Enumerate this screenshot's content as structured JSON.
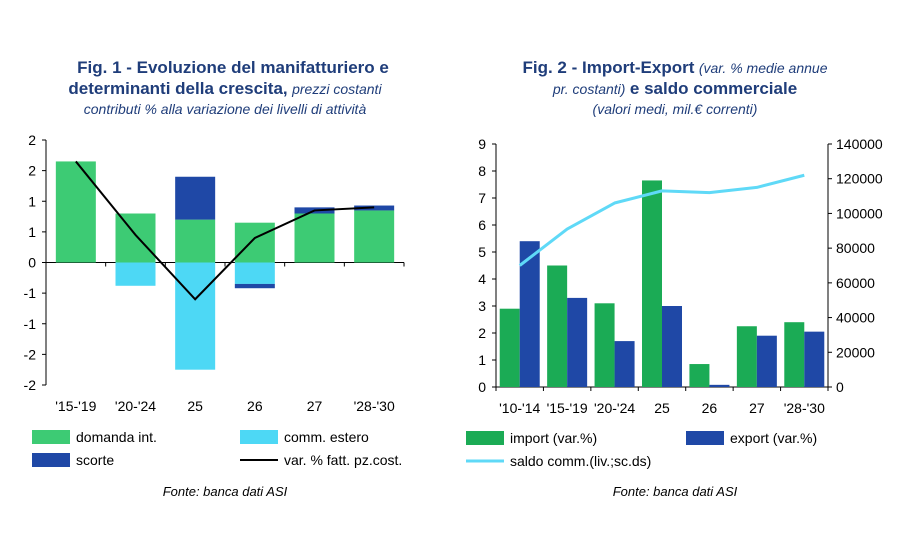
{
  "fig1": {
    "title_bold_1": "Fig. 1 - Evoluzione del manifatturiero e",
    "title_bold_2": "determinanti della crescita,",
    "title_italic_2": "prezzi costanti",
    "title_italic_3": "contributi % alla variazione dei livelli di attività",
    "source": "Fonte: banca dati ASI",
    "chart_data": {
      "type": "bar",
      "stacked": true,
      "categories": [
        "'15-'19",
        "'20-'24",
        "25",
        "26",
        "27",
        "'28-'30"
      ],
      "yticks": [
        "2",
        "2",
        "1",
        "1",
        "0",
        "-1",
        "-1",
        "-2",
        "-2"
      ],
      "ylim": [
        -2.0,
        2.0
      ],
      "grid": false,
      "legend_position": "bottom",
      "series": [
        {
          "name": "domanda int.",
          "kind": "bar",
          "color": "#3dcb74",
          "values": [
            1.65,
            0.8,
            0.7,
            0.65,
            0.8,
            0.85
          ]
        },
        {
          "name": "comm. estero",
          "kind": "bar",
          "color": "#4dd8f5",
          "values": [
            0,
            -0.38,
            -1.75,
            -0.35,
            0,
            0
          ]
        },
        {
          "name": "scorte",
          "kind": "bar",
          "color": "#1f48a6",
          "values": [
            0,
            0,
            0.7,
            -0.07,
            0.1,
            0.08
          ]
        },
        {
          "name": "var. % fatt. pz.cost.",
          "kind": "line",
          "color": "#000000",
          "values": [
            1.65,
            0.45,
            -0.6,
            0.4,
            0.85,
            0.9
          ]
        }
      ]
    }
  },
  "fig2": {
    "title_bold_1": "Fig. 2 - Import-Export",
    "title_italic_1": "(var. % medie annue",
    "title_italic_2": "pr. costanti)",
    "title_bold_2": "e saldo commerciale",
    "title_italic_3": "(valori medi, mil.€ correnti)",
    "source": "Fonte: banca dati ASI",
    "chart_data": {
      "type": "bar",
      "categories": [
        "'10-'14",
        "'15-'19",
        "'20-'24",
        "25",
        "26",
        "27",
        "'28-'30"
      ],
      "yticks_left": [
        "0",
        "1",
        "2",
        "3",
        "4",
        "5",
        "6",
        "7",
        "8",
        "9"
      ],
      "ylim_left": [
        0,
        9
      ],
      "yticks_right": [
        "0",
        "20000",
        "40000",
        "60000",
        "80000",
        "100000",
        "120000",
        "140000"
      ],
      "ylim_right": [
        0,
        140000
      ],
      "grid": false,
      "legend_position": "bottom",
      "series": [
        {
          "name": "import (var.%)",
          "kind": "bar",
          "axis": "left",
          "color": "#1bab55",
          "values": [
            2.9,
            4.5,
            3.1,
            7.65,
            0.85,
            2.25,
            2.4
          ]
        },
        {
          "name": "export (var.%)",
          "kind": "bar",
          "axis": "left",
          "color": "#1f48a6",
          "values": [
            5.4,
            3.3,
            1.7,
            3.0,
            0.08,
            1.9,
            2.05
          ]
        },
        {
          "name": "saldo comm.(liv.;sc.ds)",
          "kind": "line",
          "axis": "right",
          "color": "#5fd9f7",
          "values": [
            70000,
            91000,
            106000,
            113000,
            112000,
            115000,
            122000
          ]
        }
      ]
    }
  }
}
